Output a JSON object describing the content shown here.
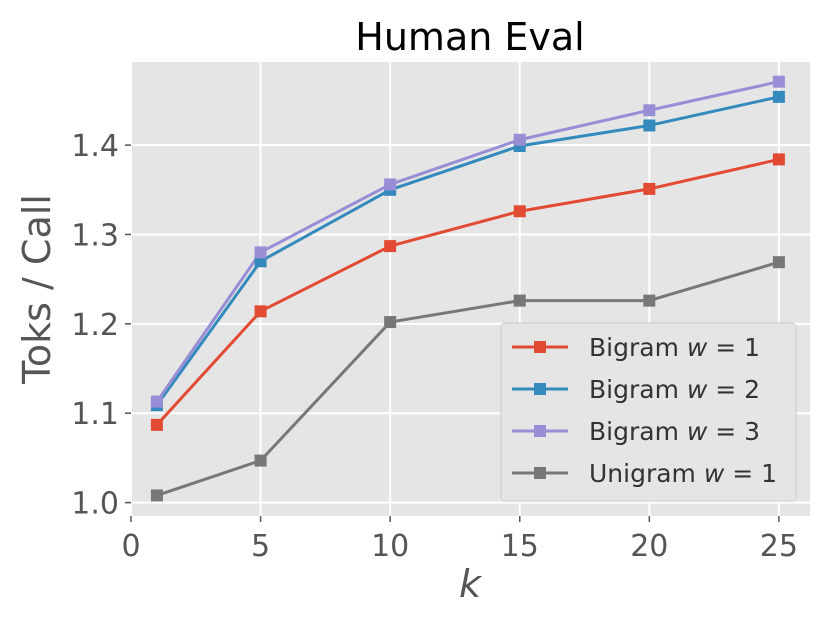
{
  "chart_data": {
    "type": "line",
    "title": "Human Eval",
    "xlabel": "k",
    "ylabel": "Toks / Call",
    "x": [
      1,
      5,
      10,
      15,
      20,
      25
    ],
    "xticks": [
      0,
      5,
      10,
      15,
      20,
      25
    ],
    "yticks": [
      1.0,
      1.1,
      1.2,
      1.3,
      1.4
    ],
    "xlim": [
      0,
      26.2
    ],
    "ylim": [
      0.985,
      1.493
    ],
    "grid": true,
    "legend_position": "lower-right",
    "background": "#E5E5E5",
    "series": [
      {
        "name": "Bigram",
        "legend_w": "w = 1",
        "color": "#E24A33",
        "marker": "square",
        "values": [
          1.087,
          1.214,
          1.287,
          1.326,
          1.351,
          1.384
        ]
      },
      {
        "name": "Bigram",
        "legend_w": "w = 2",
        "color": "#348ABD",
        "marker": "square",
        "values": [
          1.109,
          1.27,
          1.35,
          1.399,
          1.422,
          1.454
        ]
      },
      {
        "name": "Bigram",
        "legend_w": "w = 3",
        "color": "#988ED5",
        "marker": "square",
        "values": [
          1.113,
          1.28,
          1.356,
          1.406,
          1.439,
          1.471
        ]
      },
      {
        "name": "Unigram",
        "legend_w": "w = 1",
        "color": "#777777",
        "marker": "square",
        "values": [
          1.008,
          1.047,
          1.202,
          1.226,
          1.226,
          1.269
        ]
      }
    ]
  }
}
